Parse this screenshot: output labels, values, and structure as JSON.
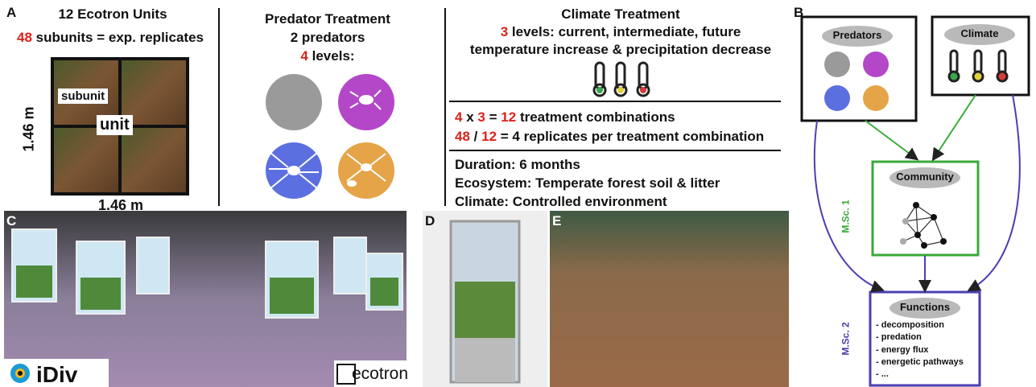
{
  "panel_a": {
    "label": "A",
    "units": {
      "title": "12 Ecotron Units",
      "count": "48",
      "subtitle": "subunits = exp. replicates",
      "subunit": "subunit",
      "unit": "unit",
      "height": "1.46 m",
      "width": "1.46 m"
    },
    "predators": {
      "title": "Predator Treatment",
      "subtitle": "2 predators",
      "count": "4",
      "levels": "levels:"
    },
    "climate": {
      "title": "Climate Treatment",
      "count": "3",
      "levels": "levels: current, intermediate, future",
      "description": "temperature increase & precipitation decrease"
    },
    "combinations": [
      "4",
      "x",
      "3",
      "=",
      "12",
      "treatment combinations"
    ],
    "replicates": [
      "48",
      "/",
      "12",
      "= 4 replicates per treatment combination"
    ],
    "details": [
      "Duration: 6 months",
      "Ecosystem: Temperate forest soil & litter",
      "Climate: Controlled environment"
    ]
  },
  "panel_b": {
    "label": "B",
    "predators": "Predators",
    "climate": "Climate",
    "community": "Community",
    "functions": "Functions",
    "function_list": [
      "- decomposition",
      "- predation",
      "- energy flux",
      "- energetic pathways",
      "- ..."
    ],
    "msc1": "M.Sc. 1",
    "msc2": "M.Sc. 2"
  },
  "photos": {
    "c": "C",
    "d": "D",
    "e": "E",
    "idiv": "iDiv",
    "ecotron": "ecotron"
  }
}
